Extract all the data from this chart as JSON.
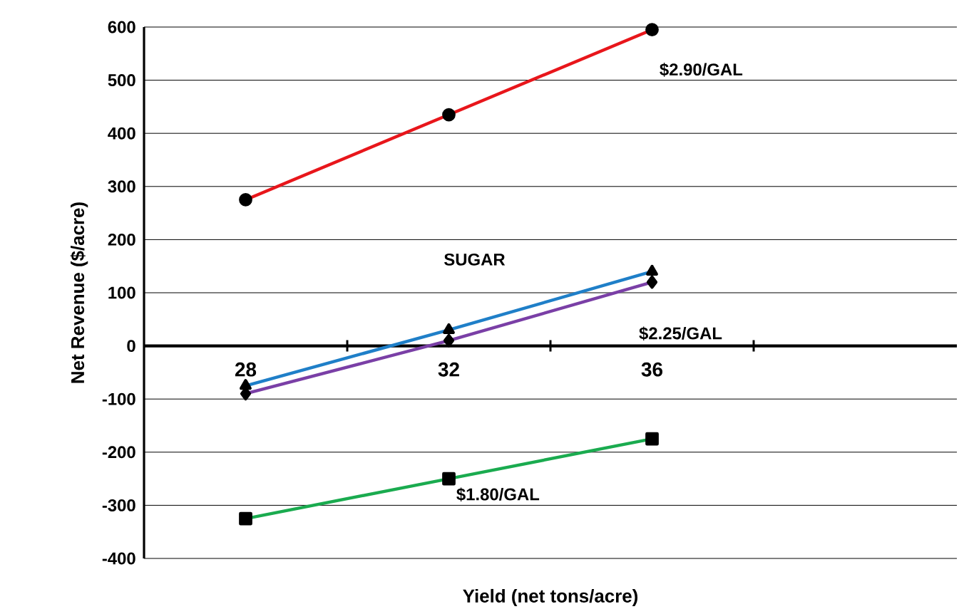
{
  "chart_data": {
    "type": "line",
    "xlabel": "Yield (net tons/acre)",
    "ylabel": "Net Revenue ($/acre)",
    "categories": [
      "28",
      "32",
      "36",
      null
    ],
    "series": [
      {
        "name": "$2.90/GAL",
        "color": "#e8161b",
        "marker": "circle",
        "values": [
          275,
          435,
          595,
          null
        ]
      },
      {
        "name": "SUGAR",
        "color": "#1f7fc8",
        "marker": "triangle",
        "values": [
          -75,
          30,
          140,
          null
        ]
      },
      {
        "name": "$2.25/GAL",
        "color": "#7a3fa6",
        "marker": "diamond",
        "values": [
          -90,
          10,
          120,
          null
        ]
      },
      {
        "name": "$1.80/GAL",
        "color": "#1aab4f",
        "marker": "square",
        "values": [
          -325,
          -250,
          -175,
          null
        ]
      }
    ],
    "ylim": [
      -400,
      600
    ],
    "yticks": [
      -400,
      -300,
      -200,
      -100,
      0,
      100,
      200,
      300,
      400,
      500,
      600
    ],
    "grid": "y",
    "line_style": "solid"
  }
}
